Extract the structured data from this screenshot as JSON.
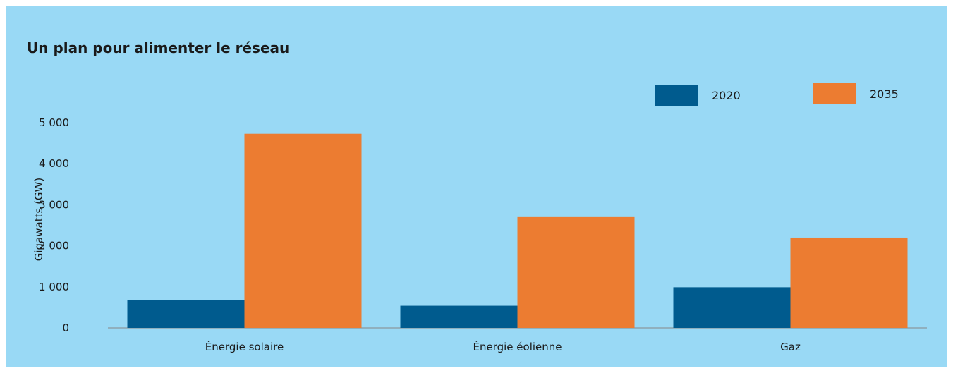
{
  "chart_data": {
    "type": "bar",
    "title": "Un plan pour alimenter le réseau",
    "ylabel": "Gigawatts (GW)",
    "xlabel": "",
    "categories": [
      "Énergie solaire",
      "Énergie éolienne",
      "Gaz"
    ],
    "series": [
      {
        "name": "2020",
        "color": "#005b8e",
        "values": [
          680,
          540,
          990
        ]
      },
      {
        "name": "2035",
        "color": "#ec7c31",
        "values": [
          4730,
          2700,
          2200
        ]
      }
    ],
    "ylim": [
      0,
      5000
    ],
    "yticks": [
      0,
      1000,
      2000,
      3000,
      4000,
      5000
    ],
    "ytick_labels": [
      "0",
      "1 000",
      "2 000",
      "3 000",
      "4 000",
      "5 000"
    ],
    "grid": false,
    "legend_position": "top-right"
  }
}
